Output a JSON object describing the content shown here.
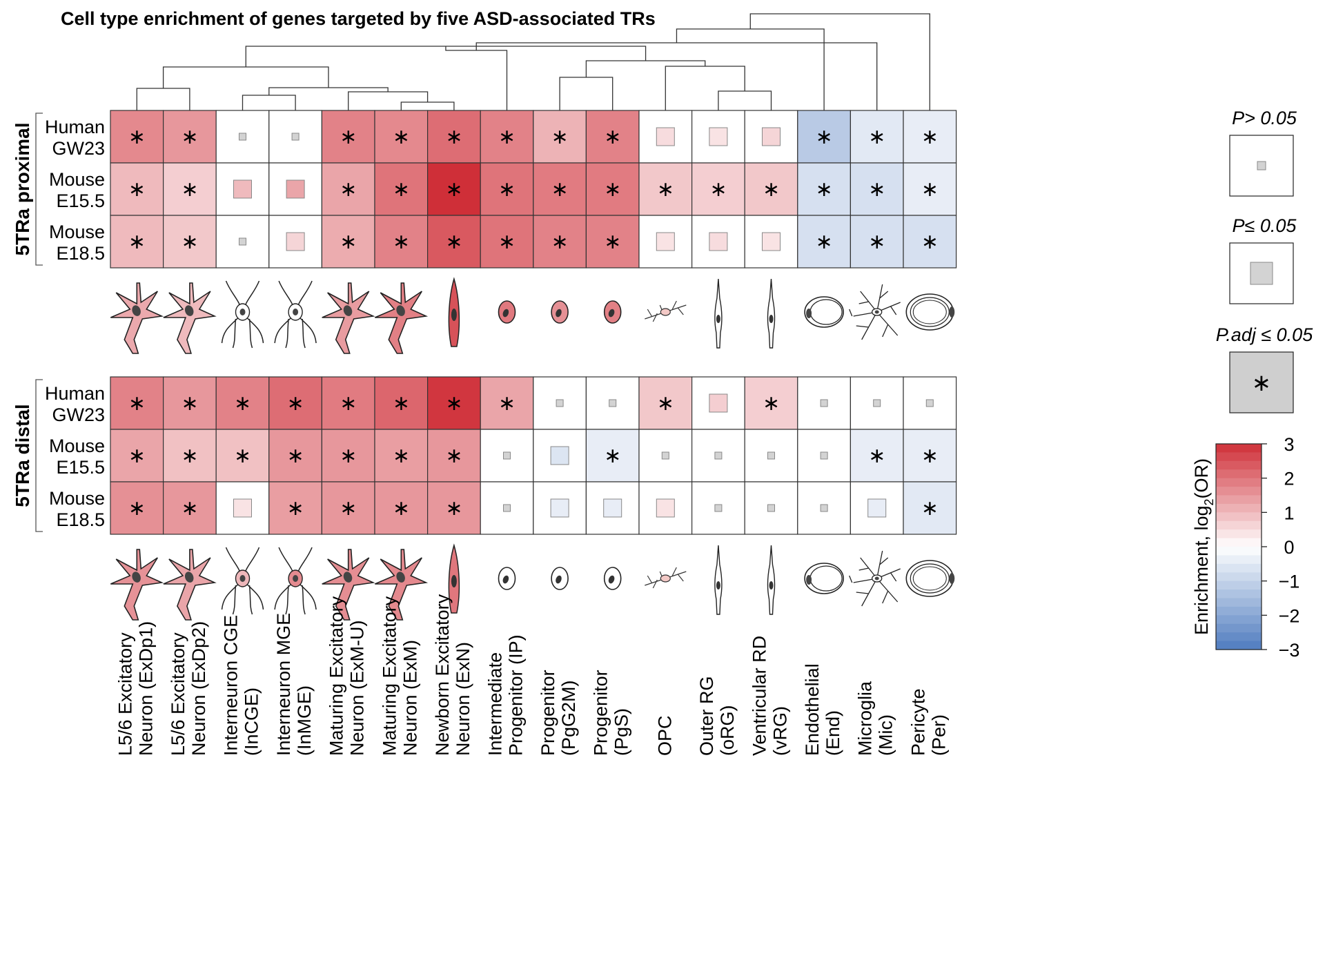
{
  "title": "Cell type enrichment of genes targeted by five ASD-associated TRs",
  "chart_data": {
    "type": "heatmap",
    "title": "Cell type enrichment of genes targeted by five ASD-associated TRs",
    "columns": [
      {
        "line1": "L5/6 Excitatory",
        "line2": "Neuron (ExDp1)",
        "icon": "excitatory-neuron-icon"
      },
      {
        "line1": "L5/6 Excitatory",
        "line2": "Neuron (ExDp2)",
        "icon": "excitatory-neuron-icon"
      },
      {
        "line1": "Interneuron CGE",
        "line2": "(InCGE)",
        "icon": "interneuron-icon"
      },
      {
        "line1": "Interneuron MGE",
        "line2": "(InMGE)",
        "icon": "interneuron-icon"
      },
      {
        "line1": "Maturing Excitatory",
        "line2": "Neuron (ExM-U)",
        "icon": "excitatory-neuron-icon"
      },
      {
        "line1": "Maturing Excitatory",
        "line2": "Neuron (ExM)",
        "icon": "excitatory-neuron-icon"
      },
      {
        "line1": "Newborn Excitatory",
        "line2": "Neuron (ExN)",
        "icon": "newborn-neuron-icon"
      },
      {
        "line1": "Intermediate",
        "line2": "Progenitor (IP)",
        "icon": "progenitor-cell-icon"
      },
      {
        "line1": "Progenitor",
        "line2": "(PgG2M)",
        "icon": "progenitor-cell-icon"
      },
      {
        "line1": "Progenitor",
        "line2": "(PgS)",
        "icon": "progenitor-cell-icon"
      },
      {
        "line1": "OPC",
        "line2": "",
        "icon": "opc-cell-icon"
      },
      {
        "line1": "Outer RG",
        "line2": "(oRG)",
        "icon": "radial-glia-icon"
      },
      {
        "line1": "Ventricular RD",
        "line2": "(vRG)",
        "icon": "radial-glia-icon"
      },
      {
        "line1": "Endothelial",
        "line2": "(End)",
        "icon": "endothelial-cell-icon"
      },
      {
        "line1": "Microglia",
        "line2": "(Mic)",
        "icon": "microglia-icon"
      },
      {
        "line1": "Pericyte",
        "line2": "(Per)",
        "icon": "pericyte-icon"
      }
    ],
    "panels": [
      {
        "name": "5TRa proximal",
        "rows": [
          {
            "line1": "Human",
            "line2": "GW23",
            "values": [
              1.7,
              1.5,
              0.15,
              0.15,
              1.8,
              1.7,
              2.1,
              1.8,
              1.1,
              1.8,
              0.5,
              0.4,
              0.6,
              -1.2,
              -0.5,
              -0.4
            ],
            "sig": [
              "adj",
              "adj",
              "ns",
              "ns",
              "adj",
              "adj",
              "adj",
              "adj",
              "adj",
              "adj",
              "p",
              "p",
              "p",
              "adj",
              "adj",
              "adj"
            ]
          },
          {
            "line1": "Mouse",
            "line2": "E15.5",
            "values": [
              1.0,
              0.7,
              1.0,
              1.3,
              1.3,
              2.0,
              3.0,
              2.0,
              1.9,
              1.9,
              0.8,
              0.7,
              0.8,
              -0.7,
              -0.7,
              -0.4
            ],
            "sig": [
              "adj",
              "adj",
              "p",
              "p",
              "adj",
              "adj",
              "adj",
              "adj",
              "adj",
              "adj",
              "adj",
              "adj",
              "adj",
              "adj",
              "adj",
              "adj"
            ]
          },
          {
            "line1": "Mouse",
            "line2": "E18.5",
            "values": [
              1.0,
              0.8,
              0.2,
              0.6,
              1.2,
              1.8,
              2.4,
              2.0,
              1.8,
              1.8,
              0.4,
              0.5,
              0.4,
              -0.7,
              -0.7,
              -0.7
            ],
            "sig": [
              "adj",
              "adj",
              "ns",
              "p",
              "adj",
              "adj",
              "adj",
              "adj",
              "adj",
              "adj",
              "p",
              "p",
              "p",
              "adj",
              "adj",
              "adj"
            ]
          }
        ]
      },
      {
        "name": "5TRa distal",
        "rows": [
          {
            "line1": "Human",
            "line2": "GW23",
            "values": [
              1.8,
              1.5,
              1.8,
              2.1,
              1.9,
              2.2,
              2.9,
              1.3,
              0.0,
              0.0,
              0.8,
              0.7,
              0.7,
              0.0,
              0.0,
              0.0
            ],
            "sig": [
              "adj",
              "adj",
              "adj",
              "adj",
              "adj",
              "adj",
              "adj",
              "adj",
              "ns",
              "ns",
              "adj",
              "p",
              "adj",
              "ns",
              "ns",
              "ns"
            ]
          },
          {
            "line1": "Mouse",
            "line2": "E15.5",
            "values": [
              1.3,
              0.9,
              0.9,
              1.5,
              1.5,
              1.4,
              1.5,
              0.3,
              -0.6,
              -0.4,
              0.2,
              0.0,
              0.0,
              0.3,
              -0.4,
              -0.4
            ],
            "sig": [
              "adj",
              "adj",
              "adj",
              "adj",
              "adj",
              "adj",
              "adj",
              "ns",
              "p",
              "adj",
              "ns",
              "ns",
              "ns",
              "ns",
              "adj",
              "adj"
            ]
          },
          {
            "line1": "Mouse",
            "line2": "E18.5",
            "values": [
              1.6,
              1.5,
              0.4,
              1.4,
              1.5,
              1.5,
              1.5,
              0.3,
              -0.4,
              -0.4,
              0.4,
              0.0,
              0.0,
              0.0,
              -0.4,
              -0.5
            ],
            "sig": [
              "adj",
              "adj",
              "p",
              "adj",
              "adj",
              "adj",
              "adj",
              "ns",
              "p",
              "p",
              "p",
              "ns",
              "ns",
              "ns",
              "p",
              "adj"
            ]
          }
        ]
      }
    ],
    "legend": {
      "p_gt": "P> 0.05",
      "p_le": "P≤ 0.05",
      "p_adj": "P.adj ≤ 0.05",
      "colorbar_label_pre": "Enrichment, log",
      "colorbar_label_sub": "2",
      "colorbar_label_post": "(OR)",
      "colorbar_range": [
        -3,
        3
      ],
      "colorbar_ticks": [
        "3",
        "2",
        "1",
        "0",
        "−1",
        "−2",
        "−3"
      ],
      "asterisk": "∗"
    },
    "colors": {
      "high": "#cf2f38",
      "mid": "#ffffff",
      "low": "#4f7bbf",
      "ns_marker": "#d3d3d3"
    }
  }
}
